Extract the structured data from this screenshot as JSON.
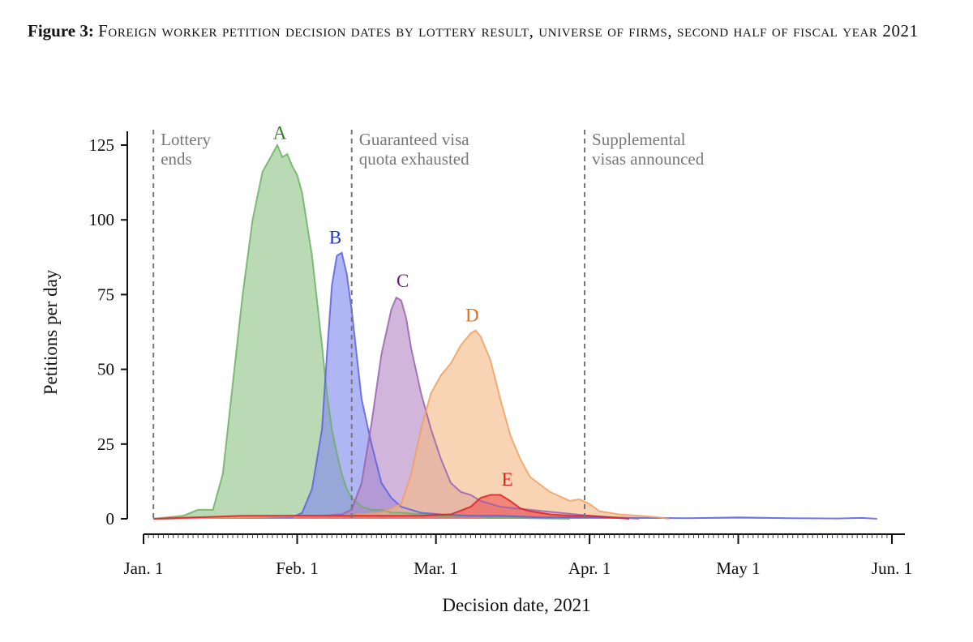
{
  "caption": {
    "label": "Figure 3:",
    "text": "Foreign worker petition decision dates by lottery result, universe of firms, second half of fiscal year 2021"
  },
  "chart_data": {
    "type": "area",
    "title": "Foreign worker petition decision dates by lottery result, universe of firms, second half of fiscal year 2021",
    "xlabel": "Decision date, 2021",
    "ylabel": "Petitions per day",
    "xlim": [
      0,
      152
    ],
    "ylim": [
      0,
      130
    ],
    "x_unit": "days since Jan. 1, 2021",
    "x_ticks": [
      {
        "value": 0,
        "label": "Jan. 1"
      },
      {
        "value": 31,
        "label": "Feb. 1"
      },
      {
        "value": 59,
        "label": "Mar. 1"
      },
      {
        "value": 90,
        "label": "Apr. 1"
      },
      {
        "value": 120,
        "label": "May 1"
      },
      {
        "value": 151,
        "label": "Jun. 1"
      }
    ],
    "y_ticks": [
      0,
      25,
      50,
      75,
      100,
      125
    ],
    "reference_lines": [
      {
        "x": 2,
        "label_lines": [
          "Lottery",
          "ends"
        ]
      },
      {
        "x": 42,
        "label_lines": [
          "Guaranteed visa",
          "quota exhausted"
        ]
      },
      {
        "x": 89,
        "label_lines": [
          "Supplemental",
          "visas announced"
        ]
      }
    ],
    "series": [
      {
        "name": "A",
        "color": "#3a8a2a",
        "label_color": "#2f7a22",
        "fill": "#8fc488",
        "line": "#6bb064",
        "x": [
          2,
          8,
          11,
          14,
          16,
          18,
          20,
          22,
          24,
          26,
          27,
          28,
          29,
          30,
          31,
          32,
          34,
          36,
          37,
          38,
          39,
          40,
          41,
          42,
          44,
          46,
          48,
          50,
          52,
          56,
          60,
          66,
          70,
          74,
          78,
          82,
          86
        ],
        "y": [
          0,
          1,
          3,
          3,
          15,
          45,
          75,
          100,
          116,
          122,
          125,
          121,
          122,
          118,
          115,
          109,
          88,
          58,
          42,
          30,
          22,
          15,
          10,
          7,
          4,
          3,
          3,
          2,
          2,
          1.5,
          1,
          1,
          0.5,
          0.5,
          0.2,
          0.1,
          0
        ]
      },
      {
        "name": "B",
        "color": "#2233cc",
        "label_color": "#2233cc",
        "fill": "#8088ee",
        "line": "#5a62e0",
        "x": [
          2,
          24,
          28,
          30,
          32,
          34,
          36,
          37,
          38,
          39,
          40,
          41,
          42,
          43,
          44,
          46,
          48,
          50,
          52,
          54,
          56,
          60,
          66,
          72,
          80,
          90,
          100,
          110,
          120,
          130,
          140,
          145,
          148
        ],
        "y": [
          0,
          0.5,
          0.5,
          0.5,
          2,
          10,
          30,
          55,
          78,
          88,
          89,
          82,
          70,
          55,
          40,
          25,
          12,
          7,
          4,
          3,
          2,
          1.5,
          1,
          1,
          0.5,
          0.5,
          0.3,
          0.2,
          0.5,
          0.2,
          0.1,
          0.3,
          0
        ]
      },
      {
        "name": "C",
        "color": "#6a2a7a",
        "label_color": "#6a1e78",
        "fill": "#b588c4",
        "line": "#9a62ae",
        "x": [
          2,
          20,
          30,
          36,
          40,
          42,
          44,
          46,
          48,
          50,
          51,
          52,
          53,
          54,
          56,
          58,
          60,
          62,
          64,
          66,
          68,
          72,
          78,
          84,
          90,
          100
        ],
        "y": [
          0,
          0.5,
          1,
          1,
          1.5,
          3,
          12,
          32,
          55,
          70,
          74,
          73,
          67,
          57,
          42,
          30,
          20,
          12,
          9,
          8,
          6,
          4,
          3,
          2,
          1,
          0
        ]
      },
      {
        "name": "D",
        "color": "#e87a20",
        "label_color": "#e0701a",
        "fill": "#f6b986",
        "line": "#f0a060",
        "x": [
          2,
          20,
          40,
          48,
          52,
          54,
          56,
          58,
          60,
          62,
          64,
          66,
          67,
          68,
          70,
          72,
          74,
          76,
          78,
          82,
          86,
          88,
          90,
          92,
          96,
          100,
          104,
          106
        ],
        "y": [
          0,
          0.5,
          1,
          2,
          5,
          15,
          30,
          42,
          48,
          52,
          58,
          62,
          63,
          61,
          53,
          40,
          28,
          20,
          14,
          9,
          6,
          6.5,
          5,
          2.5,
          1.5,
          1,
          0.5,
          0
        ]
      },
      {
        "name": "E",
        "color": "#dd2222",
        "label_color": "#d42020",
        "fill": "#ee5555",
        "line": "#dd2222",
        "x": [
          2,
          20,
          40,
          56,
          62,
          66,
          68,
          70,
          72,
          74,
          76,
          78,
          80,
          82,
          86,
          90,
          94,
          98
        ],
        "y": [
          0,
          1,
          1,
          1,
          1.5,
          4,
          7,
          8,
          8,
          6,
          3.5,
          2.5,
          2,
          1.5,
          1,
          1,
          0.5,
          0
        ]
      }
    ],
    "series_labels": [
      {
        "name": "A",
        "x": 27.5,
        "y": 126
      },
      {
        "name": "B",
        "x": 38.7,
        "y": 91
      },
      {
        "name": "C",
        "x": 52.3,
        "y": 76.5
      },
      {
        "name": "D",
        "x": 66.3,
        "y": 65
      },
      {
        "name": "E",
        "x": 73.4,
        "y": 10
      }
    ]
  }
}
